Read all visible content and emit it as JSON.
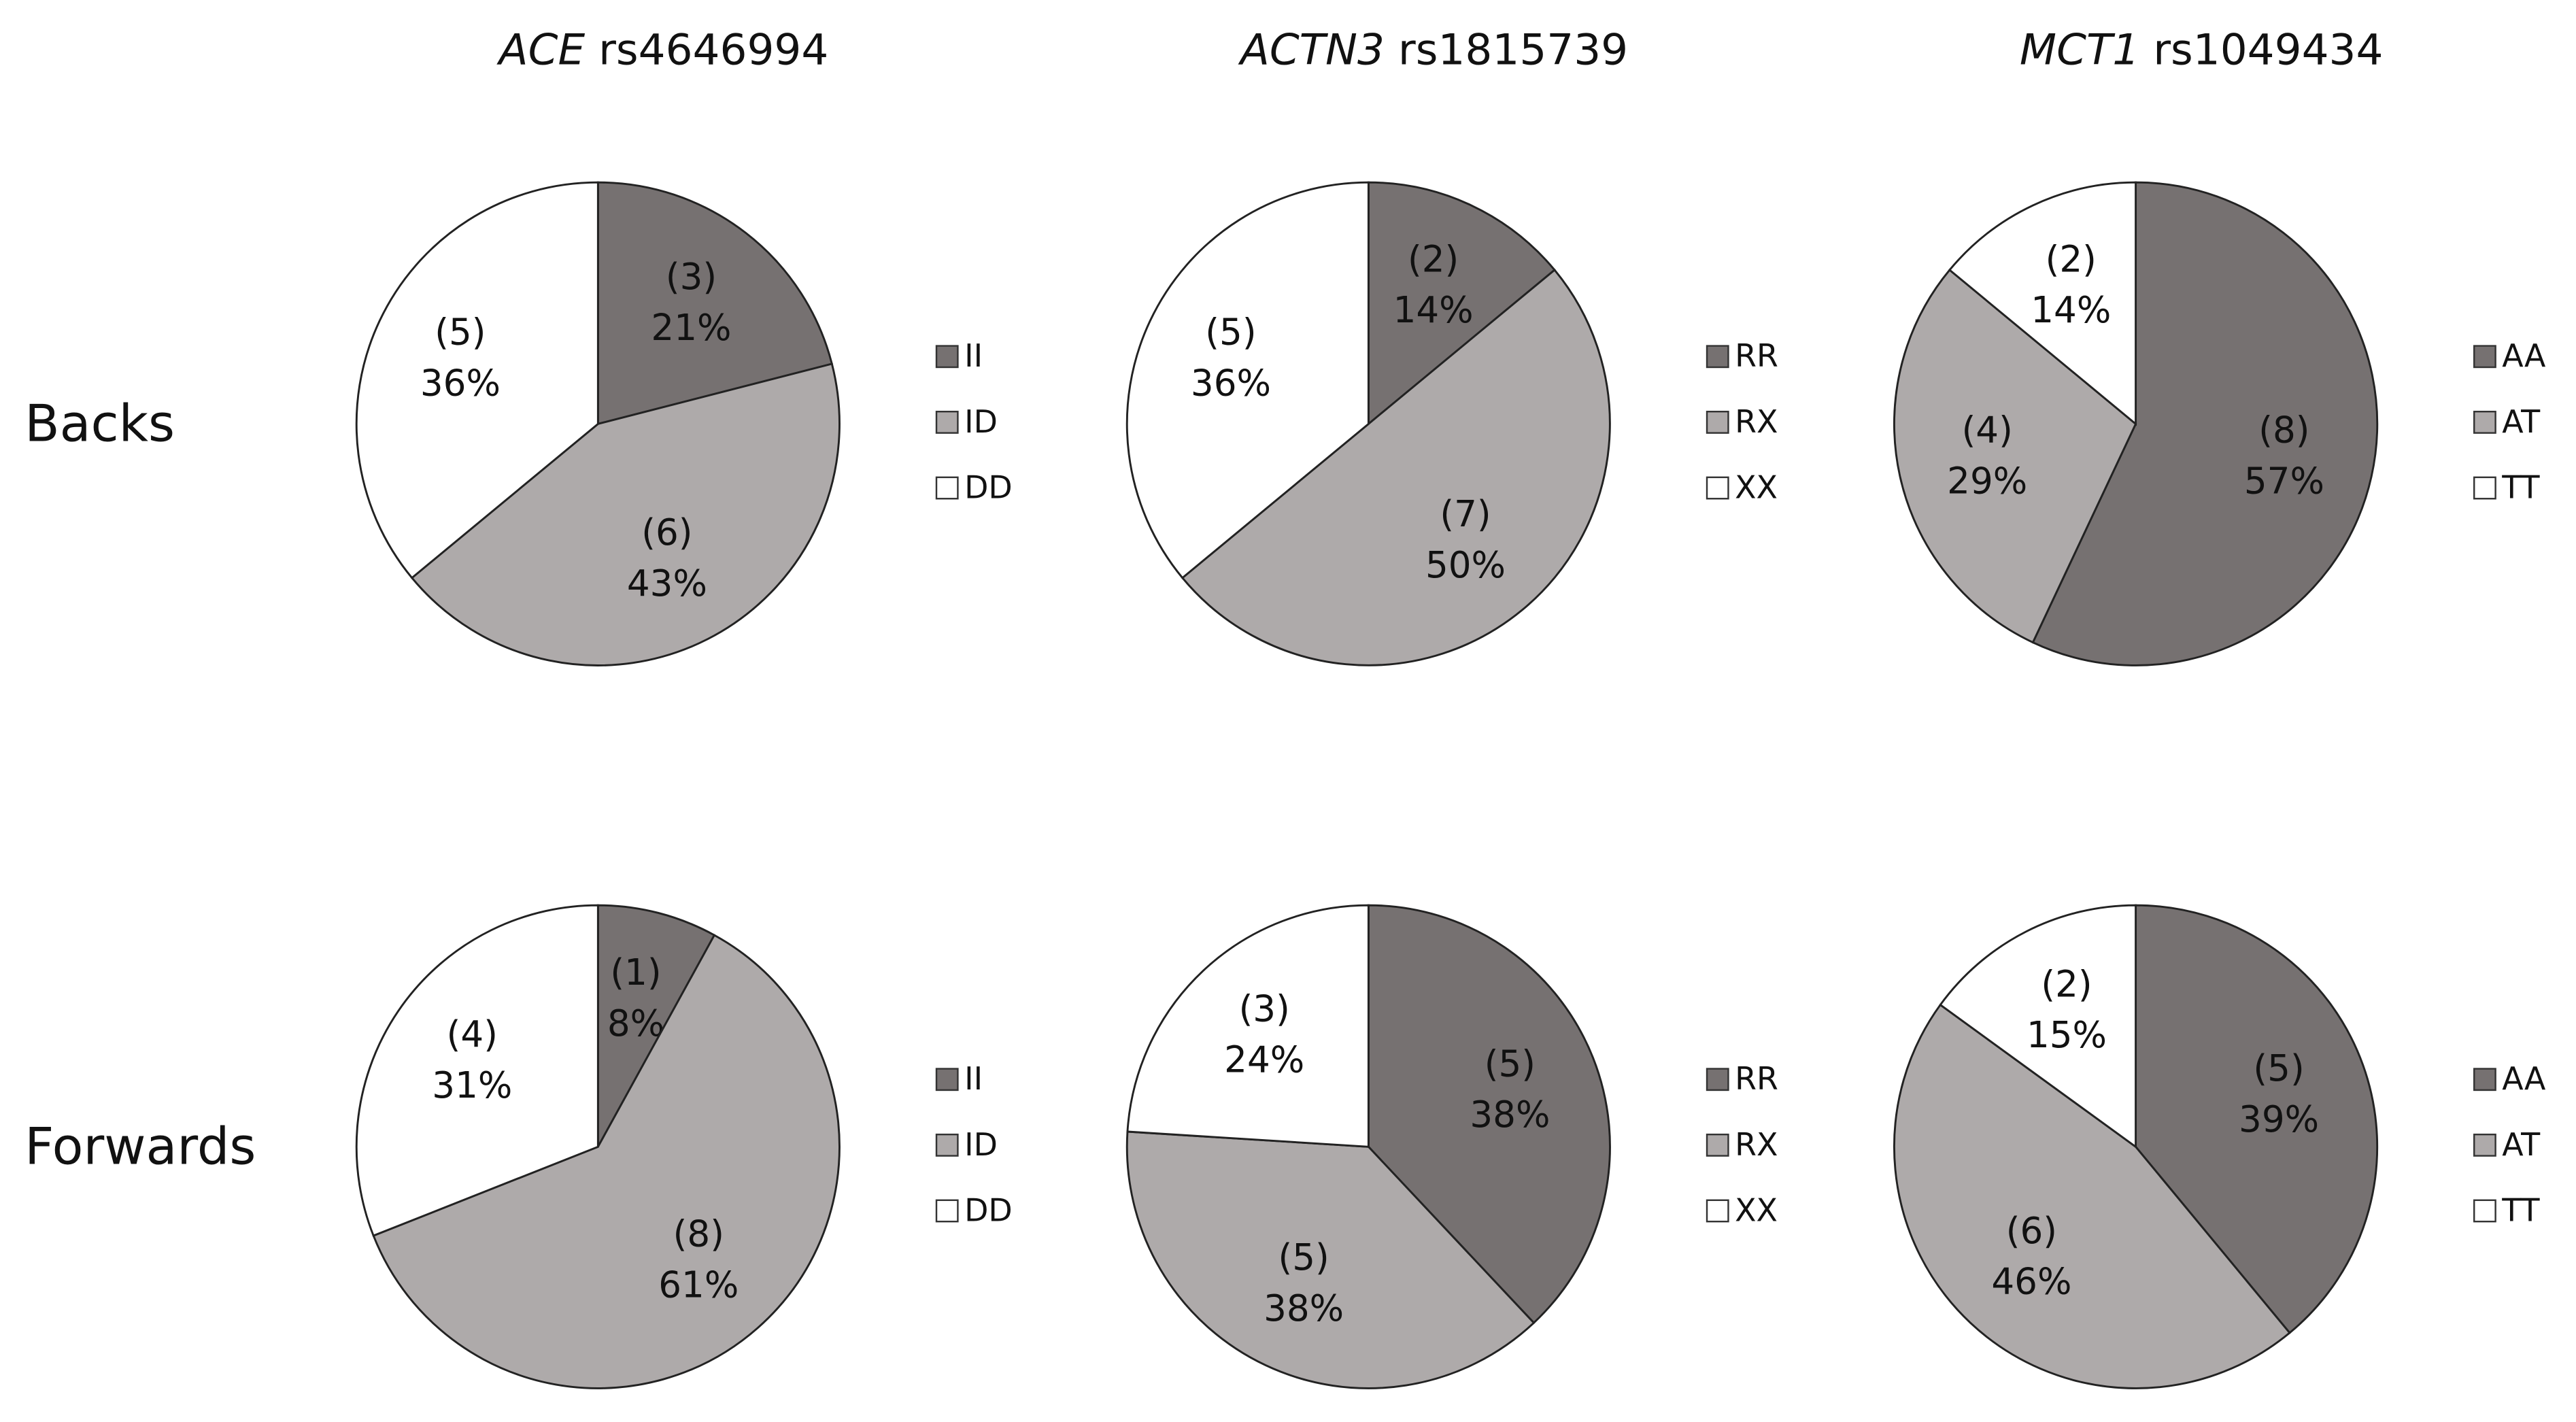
{
  "column_titles": [
    {
      "gene": "ACE",
      "snp": "rs4646994"
    },
    {
      "gene": "ACTN3",
      "snp": "rs1815739"
    },
    {
      "gene": "MCT1",
      "snp": "rs1049434"
    }
  ],
  "row_labels": [
    "Backs",
    "Forwards"
  ],
  "chart_data": [
    {
      "type": "pie",
      "categories": [
        "II",
        "ID",
        "DD"
      ],
      "colors": [
        "#767171",
        "#aeaaaa",
        "#ffffff"
      ],
      "values": [
        21,
        43,
        36
      ],
      "value_labels": [
        "21%",
        "43%",
        "36%"
      ],
      "counts": [
        3,
        6,
        5
      ],
      "count_labels": [
        "(3)",
        "(6)",
        "(5)"
      ]
    },
    {
      "type": "pie",
      "categories": [
        "RR",
        "RX",
        "XX"
      ],
      "colors": [
        "#767171",
        "#aeaaaa",
        "#ffffff"
      ],
      "values": [
        14,
        50,
        36
      ],
      "value_labels": [
        "14%",
        "50%",
        "36%"
      ],
      "counts": [
        2,
        7,
        5
      ],
      "count_labels": [
        "(2)",
        "(7)",
        "(5)"
      ]
    },
    {
      "type": "pie",
      "categories": [
        "AA",
        "AT",
        "TT"
      ],
      "colors": [
        "#767171",
        "#aeaaaa",
        "#ffffff"
      ],
      "values": [
        57,
        29,
        14
      ],
      "value_labels": [
        "57%",
        "29%",
        "14%"
      ],
      "counts": [
        8,
        4,
        2
      ],
      "count_labels": [
        "(8)",
        "(4)",
        "(2)"
      ]
    },
    {
      "type": "pie",
      "categories": [
        "II",
        "ID",
        "DD"
      ],
      "colors": [
        "#767171",
        "#aeaaaa",
        "#ffffff"
      ],
      "values": [
        8,
        61,
        31
      ],
      "value_labels": [
        "8%",
        "61%",
        "31%"
      ],
      "counts": [
        1,
        8,
        4
      ],
      "count_labels": [
        "(1)",
        "(8)",
        "(4)"
      ]
    },
    {
      "type": "pie",
      "categories": [
        "RR",
        "RX",
        "XX"
      ],
      "colors": [
        "#767171",
        "#aeaaaa",
        "#ffffff"
      ],
      "values": [
        38,
        38,
        24
      ],
      "value_labels": [
        "38%",
        "38%",
        "24%"
      ],
      "counts": [
        5,
        5,
        3
      ],
      "count_labels": [
        "(5)",
        "(5)",
        "(3)"
      ]
    },
    {
      "type": "pie",
      "categories": [
        "AA",
        "AT",
        "TT"
      ],
      "colors": [
        "#767171",
        "#aeaaaa",
        "#ffffff"
      ],
      "values": [
        39,
        46,
        15
      ],
      "value_labels": [
        "39%",
        "46%",
        "15%"
      ],
      "counts": [
        5,
        6,
        2
      ],
      "count_labels": [
        "(5)",
        "(6)",
        "(2)"
      ]
    }
  ]
}
